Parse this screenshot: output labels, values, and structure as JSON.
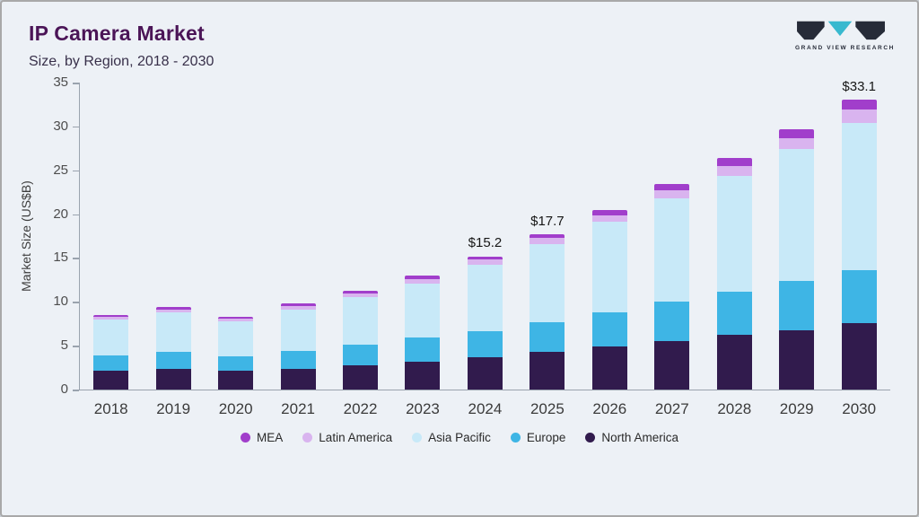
{
  "header": {
    "title": "IP Camera Market",
    "subtitle": "Size, by Region, 2018 - 2030",
    "logo_text": "GRAND VIEW RESEARCH"
  },
  "chart_data": {
    "type": "bar",
    "stacked": true,
    "title": "IP Camera Market Size, by Region, 2018 - 2030",
    "xlabel": "",
    "ylabel": "Market Size (US$B)",
    "ylim": [
      0,
      35
    ],
    "yticks": [
      0,
      5,
      10,
      15,
      20,
      25,
      30,
      35
    ],
    "grid": false,
    "categories": [
      2018,
      2019,
      2020,
      2021,
      2022,
      2023,
      2024,
      2025,
      2026,
      2027,
      2028,
      2029,
      2030
    ],
    "series": [
      {
        "name": "North America",
        "color": "#311b4d",
        "values": [
          2.2,
          2.4,
          2.1,
          2.4,
          2.8,
          3.2,
          3.7,
          4.3,
          4.9,
          5.5,
          6.2,
          6.8,
          7.6
        ]
      },
      {
        "name": "Europe",
        "color": "#3eb5e5",
        "values": [
          1.7,
          1.9,
          1.7,
          2.0,
          2.3,
          2.7,
          3.0,
          3.4,
          3.9,
          4.5,
          5.0,
          5.6,
          6.0
        ]
      },
      {
        "name": "Asia Pacific",
        "color": "#c8e9f8",
        "values": [
          4.1,
          4.5,
          4.0,
          4.7,
          5.4,
          6.2,
          7.5,
          8.9,
          10.3,
          11.8,
          13.2,
          15.0,
          16.8
        ]
      },
      {
        "name": "Latin America",
        "color": "#d9b4ef",
        "values": [
          0.3,
          0.35,
          0.3,
          0.4,
          0.5,
          0.5,
          0.6,
          0.7,
          0.8,
          0.9,
          1.1,
          1.3,
          1.5
        ]
      },
      {
        "name": "MEA",
        "color": "#a13ecb",
        "values": [
          0.2,
          0.25,
          0.2,
          0.3,
          0.3,
          0.4,
          0.4,
          0.4,
          0.6,
          0.7,
          0.9,
          1.0,
          1.2
        ]
      }
    ],
    "totals": [
      8.5,
      9.4,
      8.3,
      9.8,
      11.3,
      13.0,
      15.2,
      17.7,
      20.5,
      23.4,
      26.4,
      29.7,
      33.1
    ],
    "data_labels": {
      "2024": "$15.2",
      "2025": "$17.7",
      "2030": "$33.1"
    },
    "legend": [
      "MEA",
      "Latin America",
      "Asia Pacific",
      "Europe",
      "North America"
    ],
    "legend_position": "bottom"
  }
}
